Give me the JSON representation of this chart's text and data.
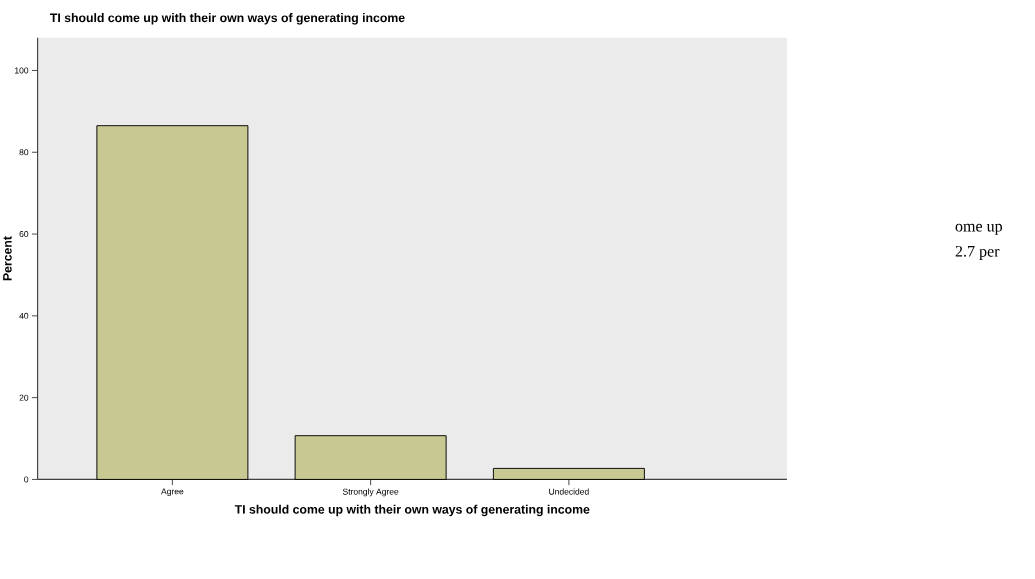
{
  "chart_data": {
    "type": "bar",
    "title": "TI should come up with their own ways of generating income",
    "xlabel": "TI should come up with their own ways of generating income",
    "ylabel": "Percent",
    "categories": [
      "Agree",
      "Strongly Agree",
      "Undecided"
    ],
    "values": [
      86.5,
      10.7,
      2.7
    ],
    "color": "#c8c893",
    "ylim": [
      0,
      108
    ],
    "yticks": [
      0,
      20,
      40,
      60,
      80,
      100
    ],
    "grid": false,
    "annotations": [
      "ome up",
      "2.7 per"
    ]
  }
}
